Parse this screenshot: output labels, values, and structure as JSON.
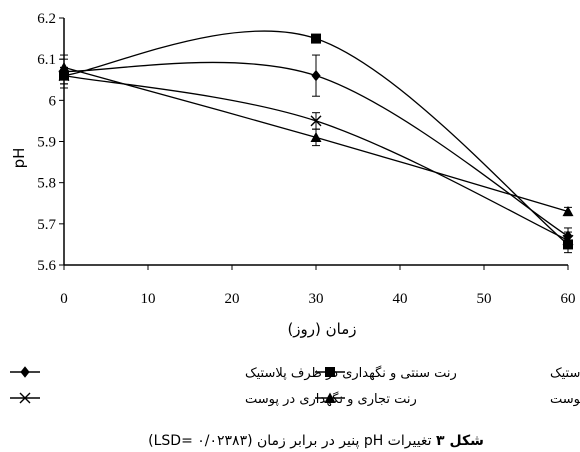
{
  "chart_data": {
    "type": "line",
    "xlabel": "زمان (روز)",
    "ylabel": "pH",
    "x": [
      0,
      30,
      60
    ],
    "xticks": [
      0,
      10,
      20,
      30,
      40,
      50,
      60
    ],
    "yticks": [
      5.6,
      5.7,
      5.8,
      5.9,
      6.0,
      6.1,
      6.2
    ],
    "ytick_labels": [
      "5.6",
      "5.7",
      "5.8",
      "5.9",
      "6",
      "6.1",
      "6.2"
    ],
    "xlim": [
      0,
      60
    ],
    "ylim": [
      5.6,
      6.2
    ],
    "grid": false,
    "legend_position": "bottom",
    "series": [
      {
        "name": "رنت سنتی و نگهداری در ظرف پلاستیک",
        "marker": "diamond",
        "values": [
          6.07,
          6.06,
          5.67
        ],
        "errors": [
          0.04,
          0.05,
          0.02
        ]
      },
      {
        "name": "رنت تجاری و نگهداری در ظرف پلاستیک",
        "marker": "square",
        "values": [
          6.06,
          6.15,
          5.65
        ],
        "errors": [
          0.02,
          0.01,
          0.02
        ]
      },
      {
        "name": "رنت تجاری و نگهداری در پوست",
        "marker": "x",
        "values": [
          6.06,
          5.95,
          5.66
        ],
        "errors": [
          0.02,
          0.02,
          0.02
        ]
      },
      {
        "name": "رنت سنتی و نگهداری در پوست",
        "marker": "triangle",
        "values": [
          6.08,
          5.91,
          5.73
        ],
        "errors": [
          0.02,
          0.02,
          0.01
        ]
      }
    ]
  },
  "caption": {
    "prefix": "شکل ۳",
    "text": "تغییرات pH پنیر در برابر زمان (LSD= ۰/۰۲۳۸۳)"
  }
}
